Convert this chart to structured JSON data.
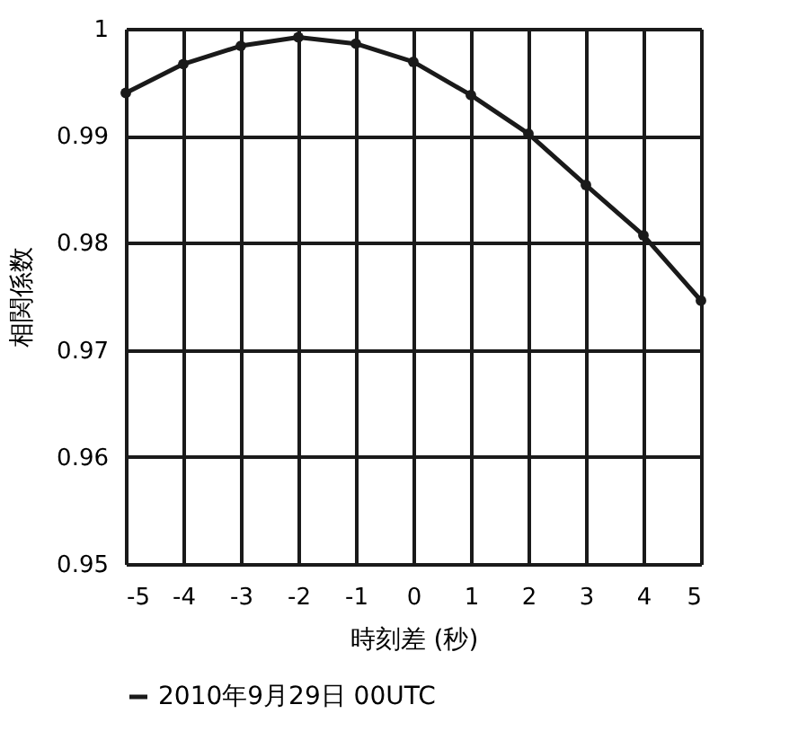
{
  "chart_data": {
    "type": "line",
    "xlabel": "時刻差 (秒)",
    "ylabel": "相関係数",
    "x": [
      -5,
      -4,
      -3,
      -2,
      -1,
      0,
      1,
      2,
      3,
      4,
      5
    ],
    "series": [
      {
        "name": "2010年9月29日 00UTC",
        "color": "#1a1a1a",
        "values": [
          0.994,
          0.9967,
          0.9984,
          0.9992,
          0.9986,
          0.9969,
          0.9938,
          0.9902,
          0.9854,
          0.9807,
          0.9746
        ]
      }
    ],
    "xlim": [
      -5,
      5
    ],
    "xticks": [
      -5,
      -4,
      -3,
      -2,
      -1,
      0,
      1,
      2,
      3,
      4,
      5
    ],
    "ylim": [
      0.95,
      1
    ],
    "yticks": [
      0.95,
      0.96,
      0.97,
      0.98,
      0.99,
      1
    ],
    "grid": true,
    "legend": "bottom",
    "marker": "circle",
    "line_style": "solid"
  }
}
